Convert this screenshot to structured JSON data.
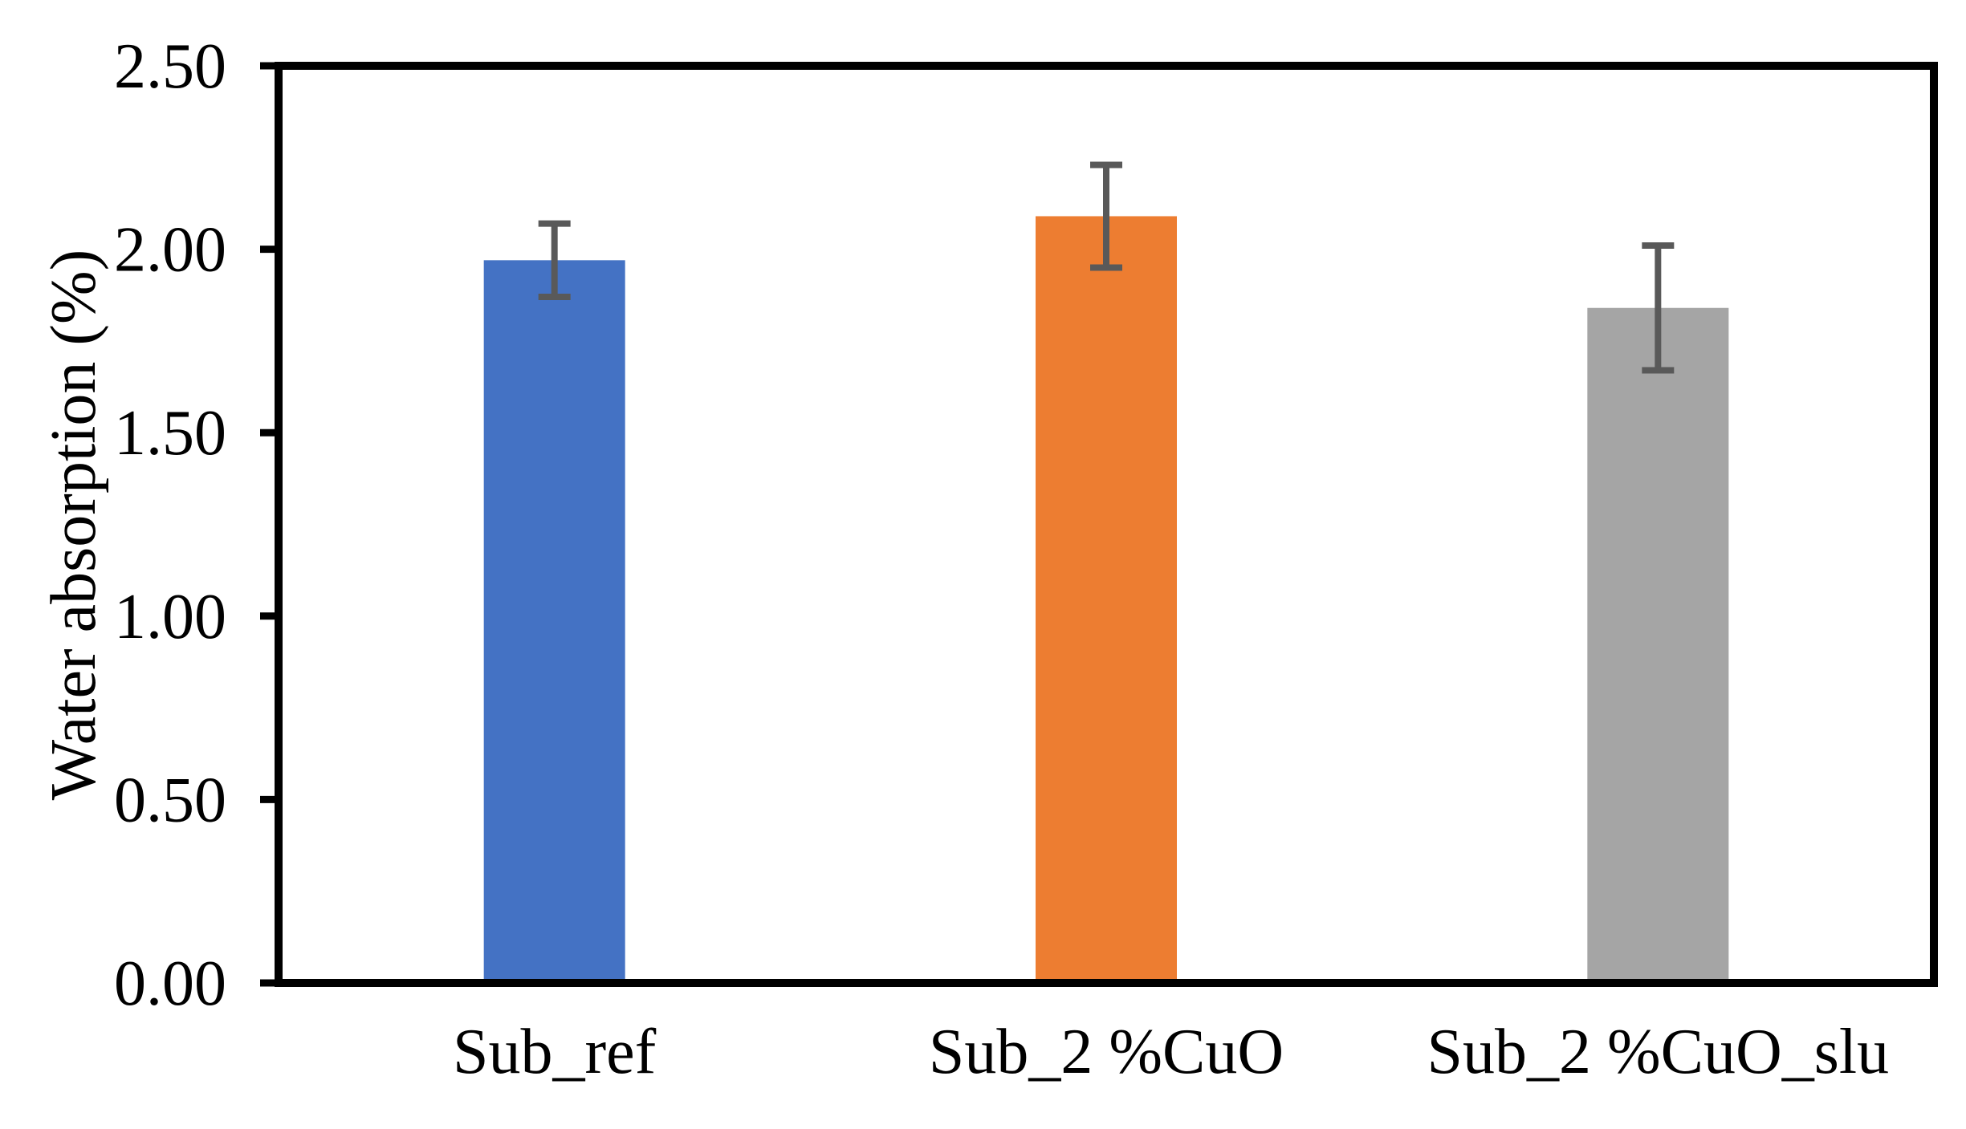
{
  "chart_data": {
    "type": "bar",
    "title": "",
    "xlabel": "",
    "ylabel": "Water absorption (%)",
    "categories": [
      "Sub_ref",
      "Sub_2 %CuO",
      "Sub_2 %CuO_slu"
    ],
    "series": [
      {
        "name": "Water absorption",
        "values": [
          1.97,
          2.09,
          1.84
        ],
        "errors": [
          0.1,
          0.14,
          0.17
        ]
      }
    ],
    "bar_colors": [
      "#4472C4",
      "#ED7D31",
      "#A5A5A5"
    ],
    "error_bar_color": "#595959",
    "axis_color": "#000000",
    "ylim": [
      0.0,
      2.5
    ],
    "ytick_labels": [
      "0.00",
      "0.50",
      "1.00",
      "1.50",
      "2.00",
      "2.50"
    ],
    "grid": false,
    "legend": false
  }
}
